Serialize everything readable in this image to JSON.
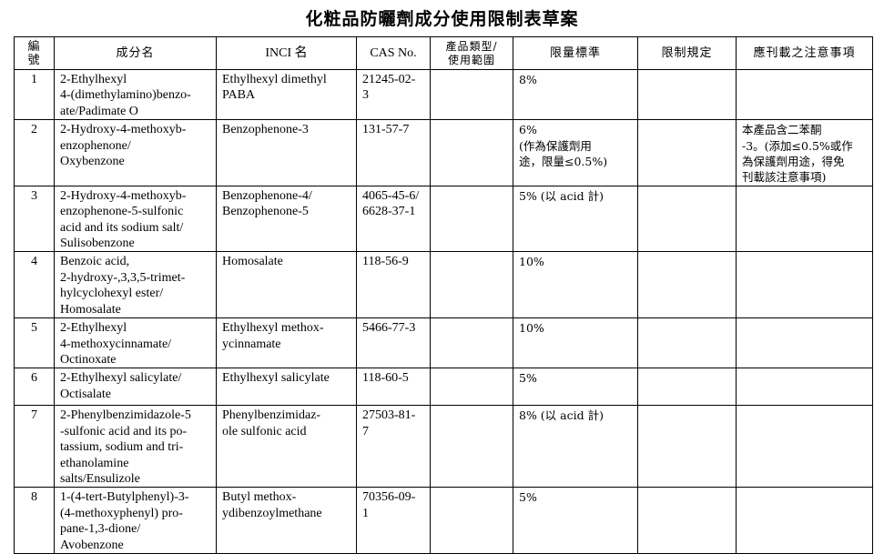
{
  "title": "化粧品防曬劑成分使用限制表草案",
  "headers": [
    "編\n號",
    "成分名",
    "INCI 名",
    "CAS No.",
    "產品類型/\n使用範圍",
    "限量標準",
    "限制規定",
    "應刊載之注意事項"
  ],
  "rows": [
    {
      "no": "1",
      "name": "2-Ethylhexyl\n4-(dimethylamino)benzo-\nate/Padimate O",
      "inci": "Ethylhexyl dimethyl\nPABA",
      "cas": "21245-02-\n3",
      "type": "",
      "limit": "8%",
      "rule": "",
      "notice": ""
    },
    {
      "no": "2",
      "name": "2-Hydroxy-4-methoxyb-\nenzophenone/\nOxybenzone",
      "inci": "Benzophenone-3",
      "cas": "131-57-7",
      "type": "",
      "limit": "6%\n(作為保護劑用\n途，限量≤0.5%)",
      "rule": "",
      "notice": "本產品含二苯酮\n-3。(添加≤0.5%或作\n為保護劑用途，得免\n刊載該注意事項)"
    },
    {
      "no": "3",
      "name": "2-Hydroxy-4-methoxyb-\nenzophenone-5-sulfonic\nacid and its sodium salt/\nSulisobenzone",
      "inci": "Benzophenone-4/\nBenzophenone-5",
      "cas": "4065-45-6/\n6628-37-1",
      "type": "",
      "limit": "5% (以 acid 計)",
      "rule": "",
      "notice": ""
    },
    {
      "no": "4",
      "name": "Benzoic acid,\n2-hydroxy-,3,3,5-trimet-\nhylcyclohexyl ester/\nHomosalate",
      "inci": "Homosalate",
      "cas": "118-56-9",
      "type": "",
      "limit": "10%",
      "rule": "",
      "notice": ""
    },
    {
      "no": "5",
      "name": "2-Ethylhexyl\n4-methoxycinnamate/\nOctinoxate",
      "inci": "Ethylhexyl methox-\nycinnamate",
      "cas": "5466-77-3",
      "type": "",
      "limit": "10%",
      "rule": "",
      "notice": ""
    },
    {
      "no": "6",
      "name": "2-Ethylhexyl salicylate/\nOctisalate",
      "inci": "Ethylhexyl salicylate",
      "cas": "118-60-5",
      "type": "",
      "limit": "5%",
      "rule": "",
      "notice": ""
    },
    {
      "no": "7",
      "name": "2-Phenylbenzimidazole-5\n-sulfonic acid and its po-\ntassium, sodium and tri-\nethanolamine\nsalts/Ensulizole",
      "inci": "Phenylbenzimidaz-\nole sulfonic acid",
      "cas": "27503-81-\n7",
      "type": "",
      "limit": "8% (以 acid 計)",
      "rule": "",
      "notice": ""
    },
    {
      "no": "8",
      "name": "1-(4-tert-Butylphenyl)-3-\n(4-methoxyphenyl) pro-\npane-1,3-dione/\nAvobenzone",
      "inci": "Butyl methox-\nydibenzoylmethane",
      "cas": "70356-09-\n1",
      "type": "",
      "limit": "5%",
      "rule": "",
      "notice": ""
    }
  ]
}
